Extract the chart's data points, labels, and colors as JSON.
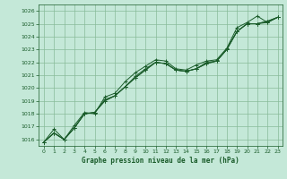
{
  "title": "Graphe pression niveau de la mer (hPa)",
  "bg_color": "#c4e8d8",
  "grid_color": "#88bb99",
  "line_color": "#1a5c2a",
  "marker_color": "#1a5c2a",
  "xlim": [
    -0.5,
    23.5
  ],
  "ylim": [
    1015.5,
    1026.5
  ],
  "yticks": [
    1016,
    1017,
    1018,
    1019,
    1020,
    1021,
    1022,
    1023,
    1024,
    1025,
    1026
  ],
  "xticks": [
    0,
    1,
    2,
    3,
    4,
    5,
    6,
    7,
    8,
    9,
    10,
    11,
    12,
    13,
    14,
    15,
    16,
    17,
    18,
    19,
    20,
    21,
    22,
    23
  ],
  "series": [
    [
      1015.8,
      1016.8,
      1016.0,
      1017.1,
      1018.1,
      1018.0,
      1019.3,
      1019.6,
      1020.5,
      1021.2,
      1021.7,
      1022.2,
      1022.1,
      1021.5,
      1021.4,
      1021.8,
      1022.1,
      1022.2,
      1023.1,
      1024.7,
      1025.1,
      1025.6,
      1025.1,
      1025.5
    ],
    [
      1015.8,
      1016.5,
      1016.0,
      1016.9,
      1018.0,
      1018.1,
      1019.1,
      1019.4,
      1020.1,
      1020.9,
      1021.5,
      1022.0,
      1021.9,
      1021.4,
      1021.3,
      1021.5,
      1022.0,
      1022.1,
      1023.0,
      1024.4,
      1025.0,
      1025.0,
      1025.1,
      1025.5
    ],
    [
      1015.8,
      1016.5,
      1016.0,
      1016.9,
      1018.0,
      1018.1,
      1019.0,
      1019.4,
      1020.1,
      1020.8,
      1021.4,
      1022.0,
      1021.9,
      1021.4,
      1021.3,
      1021.5,
      1021.9,
      1022.1,
      1023.0,
      1024.4,
      1025.0,
      1025.0,
      1025.2,
      1025.5
    ],
    [
      1015.8,
      1016.5,
      1016.0,
      1016.9,
      1018.0,
      1018.1,
      1019.0,
      1019.4,
      1020.1,
      1020.8,
      1021.4,
      1022.0,
      1021.9,
      1021.4,
      1021.3,
      1021.5,
      1021.9,
      1022.1,
      1023.0,
      1024.4,
      1025.0,
      1025.0,
      1025.2,
      1025.5
    ]
  ]
}
